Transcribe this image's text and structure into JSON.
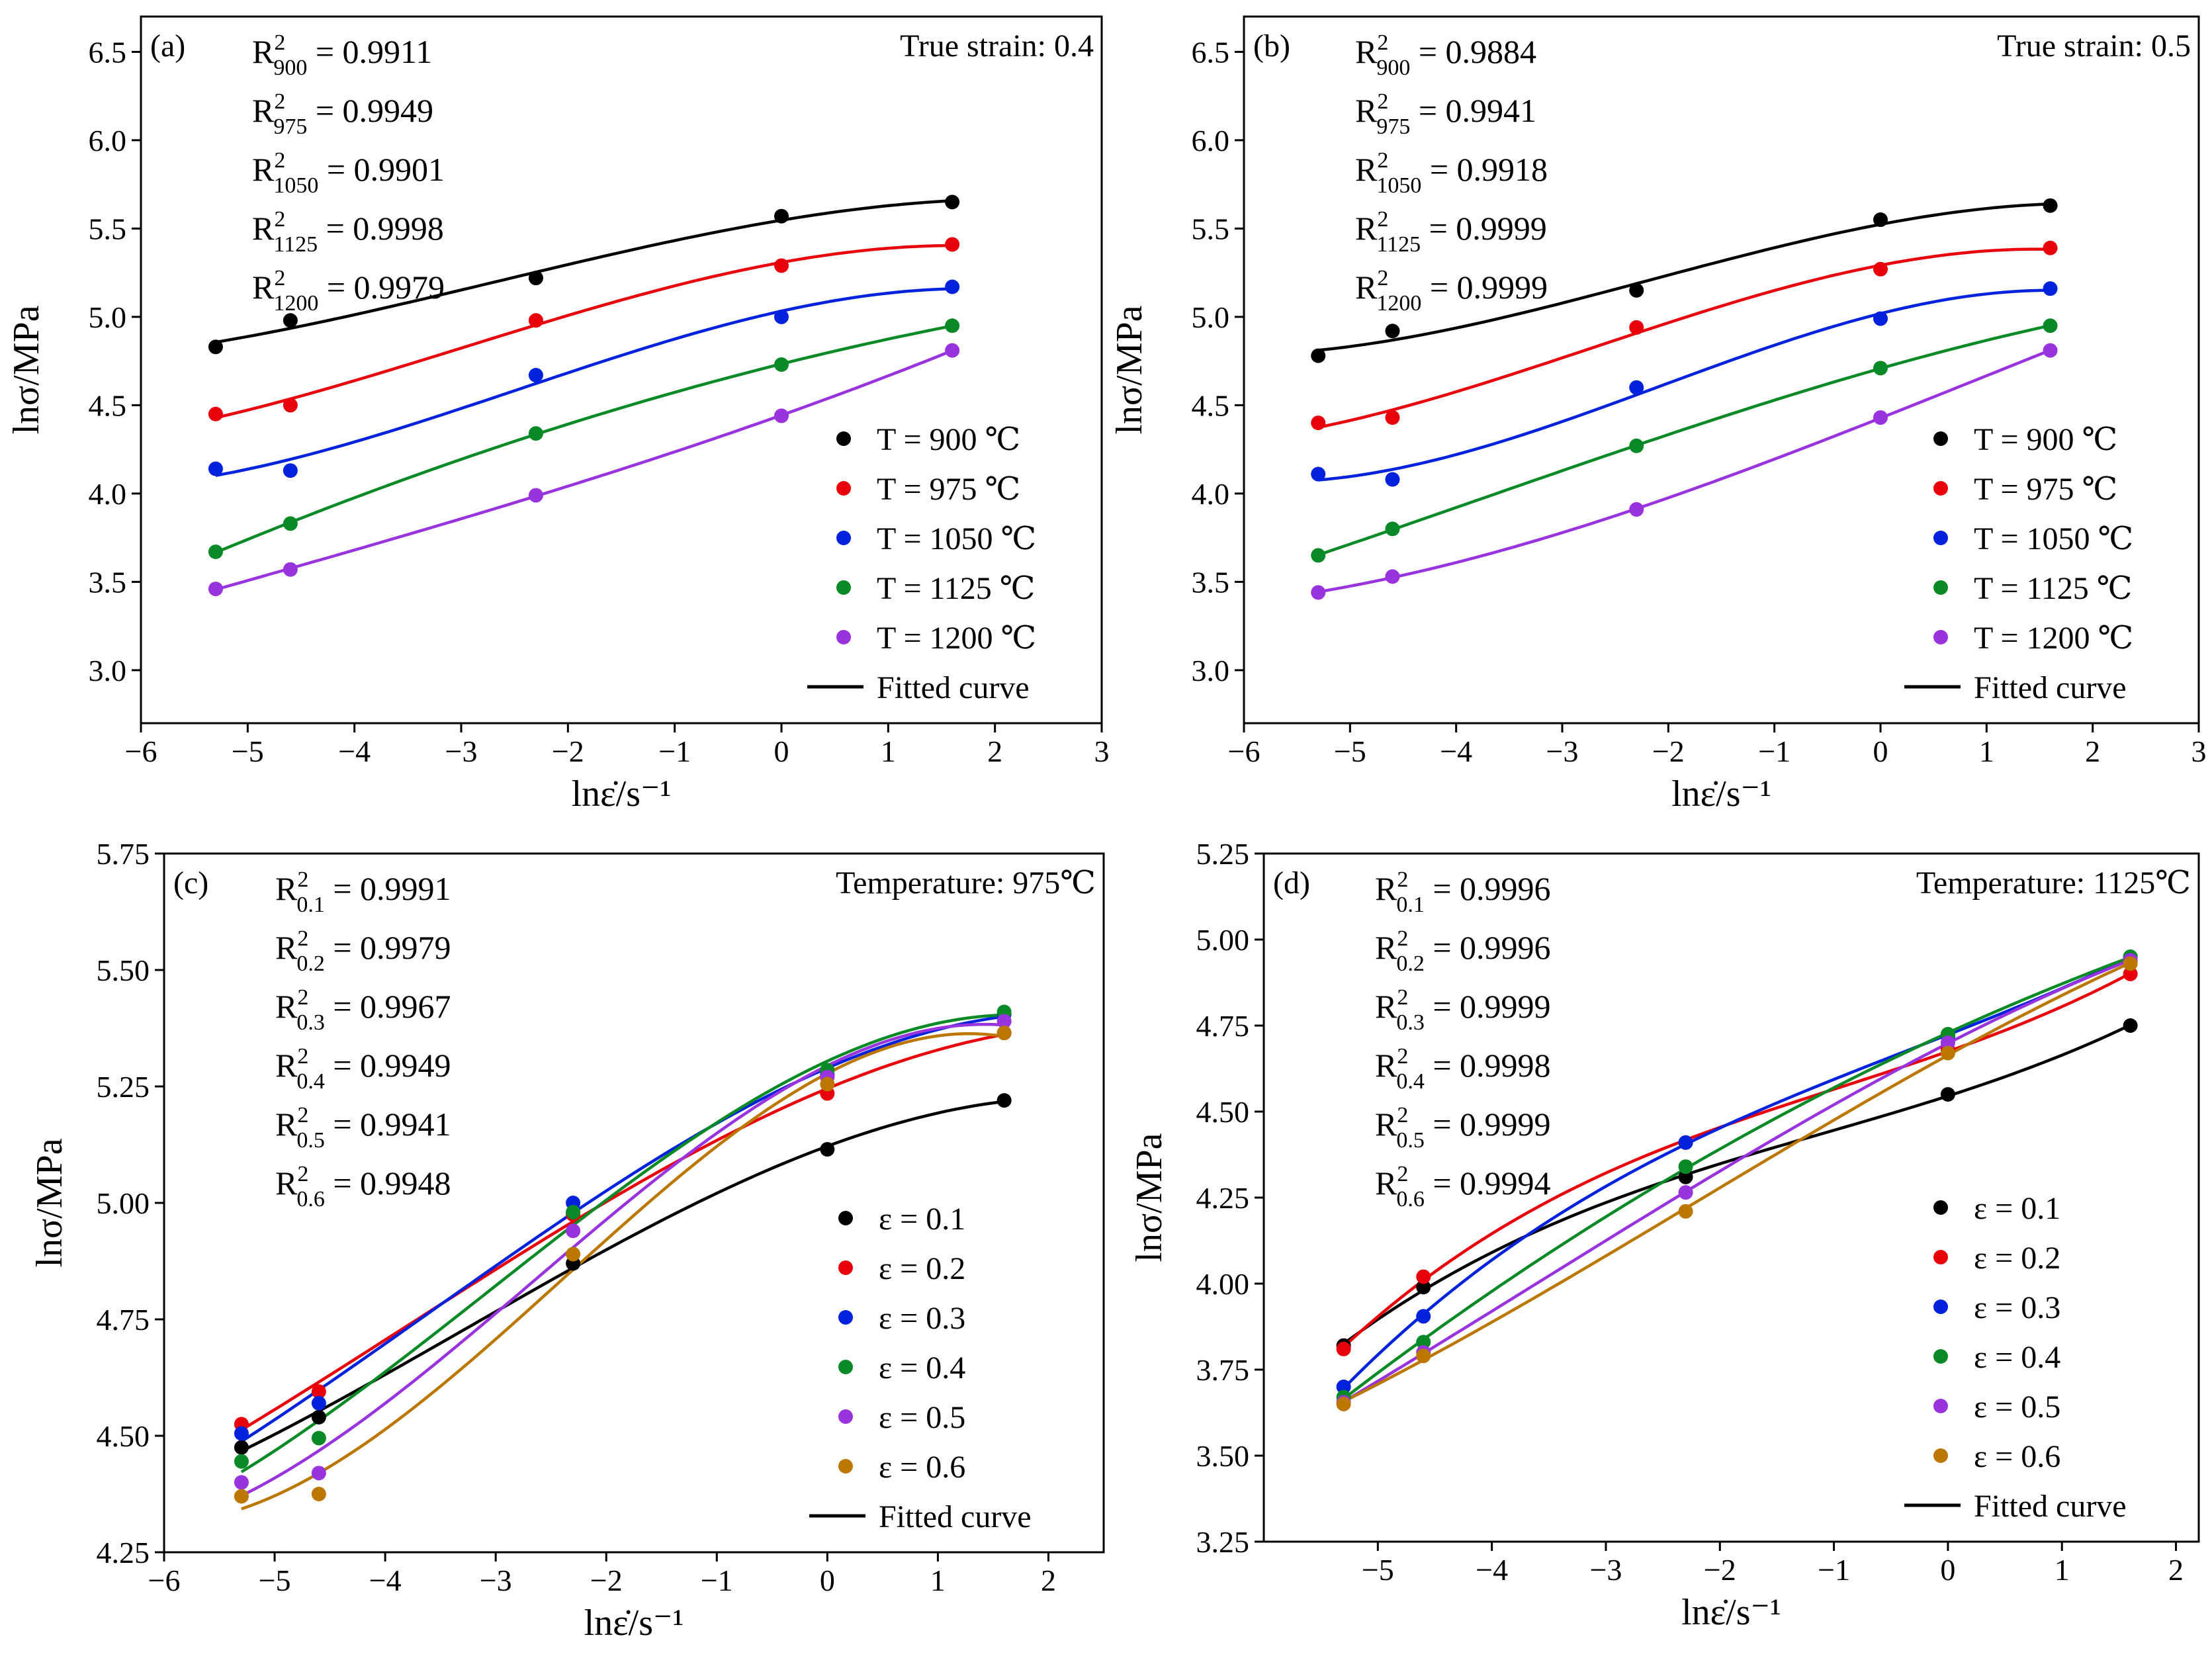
{
  "chart_data": [
    {
      "type": "scatter",
      "panel": "(a)",
      "annotation": "True strain: 0.4",
      "xlabel": "lnε̇/s⁻¹",
      "ylabel": "lnσ/MPa",
      "xlim": [
        -6,
        3
      ],
      "ylim": [
        2.7,
        6.7
      ],
      "xticks": [
        -6,
        -5,
        -4,
        -3,
        -2,
        -1,
        0,
        1,
        2,
        3
      ],
      "xtick_labels": [
        "−6",
        "−5",
        "−4",
        "−3",
        "−2",
        "−1",
        "0",
        "1",
        "2",
        "3"
      ],
      "yticks": [
        3.0,
        3.5,
        4.0,
        4.5,
        5.0,
        5.5,
        6.0,
        6.5
      ],
      "ytick_labels": [
        "3.0",
        "3.5",
        "4.0",
        "4.5",
        "5.0",
        "5.5",
        "6.0",
        "6.5"
      ],
      "x": [
        -5.3,
        -4.6,
        -2.3,
        0,
        1.6
      ],
      "r2": [
        {
          "prefix": "R",
          "sub": "900",
          "value": " = 0.9911"
        },
        {
          "prefix": "R",
          "sub": "975",
          "value": " = 0.9949"
        },
        {
          "prefix": "R",
          "sub": "1050",
          "value": " = 0.9901"
        },
        {
          "prefix": "R",
          "sub": "1125",
          "value": " = 0.9998"
        },
        {
          "prefix": "R",
          "sub": "1200",
          "value": " = 0.9979"
        }
      ],
      "series": [
        {
          "name": "T = 900 ℃",
          "color": "#000000",
          "values": [
            4.83,
            4.98,
            5.22,
            5.57,
            5.65
          ]
        },
        {
          "name": "T = 975 ℃",
          "color": "#e8000b",
          "values": [
            4.45,
            4.5,
            4.98,
            5.29,
            5.41
          ]
        },
        {
          "name": "T = 1050 ℃",
          "color": "#0022dd",
          "values": [
            4.14,
            4.13,
            4.67,
            5.0,
            5.17
          ]
        },
        {
          "name": "T = 1125 ℃",
          "color": "#0a8a26",
          "values": [
            3.67,
            3.83,
            4.34,
            4.73,
            4.95
          ]
        },
        {
          "name": "T = 1200 ℃",
          "color": "#9933dd",
          "values": [
            3.46,
            3.57,
            3.99,
            4.44,
            4.81
          ]
        }
      ],
      "fitted_label": "Fitted curve"
    },
    {
      "type": "scatter",
      "panel": "(b)",
      "annotation": "True strain: 0.5",
      "xlabel": "lnε̇/s⁻¹",
      "ylabel": "lnσ/MPa",
      "xlim": [
        -6,
        3
      ],
      "ylim": [
        2.7,
        6.7
      ],
      "xticks": [
        -6,
        -5,
        -4,
        -3,
        -2,
        -1,
        0,
        1,
        2,
        3
      ],
      "xtick_labels": [
        "−6",
        "−5",
        "−4",
        "−3",
        "−2",
        "−1",
        "0",
        "1",
        "2",
        "3"
      ],
      "yticks": [
        3.0,
        3.5,
        4.0,
        4.5,
        5.0,
        5.5,
        6.0,
        6.5
      ],
      "ytick_labels": [
        "3.0",
        "3.5",
        "4.0",
        "4.5",
        "5.0",
        "5.5",
        "6.0",
        "6.5"
      ],
      "x": [
        -5.3,
        -4.6,
        -2.3,
        0,
        1.6
      ],
      "r2": [
        {
          "prefix": "R",
          "sub": "900",
          "value": " = 0.9884"
        },
        {
          "prefix": "R",
          "sub": "975",
          "value": " = 0.9941"
        },
        {
          "prefix": "R",
          "sub": "1050",
          "value": " = 0.9918"
        },
        {
          "prefix": "R",
          "sub": "1125",
          "value": " = 0.9999"
        },
        {
          "prefix": "R",
          "sub": "1200",
          "value": " = 0.9999"
        }
      ],
      "series": [
        {
          "name": "T = 900 ℃",
          "color": "#000000",
          "values": [
            4.78,
            4.92,
            5.15,
            5.55,
            5.63
          ]
        },
        {
          "name": "T = 975 ℃",
          "color": "#e8000b",
          "values": [
            4.4,
            4.43,
            4.94,
            5.27,
            5.39
          ]
        },
        {
          "name": "T = 1050 ℃",
          "color": "#0022dd",
          "values": [
            4.11,
            4.08,
            4.6,
            4.99,
            5.16
          ]
        },
        {
          "name": "T = 1125 ℃",
          "color": "#0a8a26",
          "values": [
            3.65,
            3.8,
            4.27,
            4.71,
            4.95
          ]
        },
        {
          "name": "T = 1200 ℃",
          "color": "#9933dd",
          "values": [
            3.44,
            3.53,
            3.91,
            4.43,
            4.81
          ]
        }
      ],
      "fitted_label": "Fitted curve"
    },
    {
      "type": "scatter",
      "panel": "(c)",
      "annotation": "Temperature: 975℃",
      "xlabel": "lnε̇/s⁻¹",
      "ylabel": "lnσ/MPa",
      "xlim": [
        -6,
        2.5
      ],
      "ylim": [
        4.25,
        5.75
      ],
      "xticks": [
        -6,
        -5,
        -4,
        -3,
        -2,
        -1,
        0,
        1,
        2
      ],
      "xtick_labels": [
        "−6",
        "−5",
        "−4",
        "−3",
        "−2",
        "−1",
        "0",
        "1",
        "2"
      ],
      "yticks": [
        4.25,
        4.5,
        4.75,
        5.0,
        5.25,
        5.5,
        5.75
      ],
      "ytick_labels": [
        "4.25",
        "4.50",
        "4.75",
        "5.00",
        "5.25",
        "5.50",
        "5.75"
      ],
      "x": [
        -5.3,
        -4.6,
        -2.3,
        0,
        1.6
      ],
      "r2": [
        {
          "prefix": "R",
          "sub": "0.1",
          "value": " = 0.9991"
        },
        {
          "prefix": "R",
          "sub": "0.2",
          "value": " = 0.9979"
        },
        {
          "prefix": "R",
          "sub": "0.3",
          "value": " = 0.9967"
        },
        {
          "prefix": "R",
          "sub": "0.4",
          "value": " = 0.9949"
        },
        {
          "prefix": "R",
          "sub": "0.5",
          "value": " = 0.9941"
        },
        {
          "prefix": "R",
          "sub": "0.6",
          "value": " = 0.9948"
        }
      ],
      "series": [
        {
          "name": "ε = 0.1",
          "color": "#000000",
          "values": [
            4.475,
            4.54,
            4.87,
            5.115,
            5.22
          ]
        },
        {
          "name": "ε = 0.2",
          "color": "#e8000b",
          "values": [
            4.525,
            4.595,
            4.975,
            5.235,
            5.365
          ]
        },
        {
          "name": "ε = 0.3",
          "color": "#0022dd",
          "values": [
            4.505,
            4.57,
            5.0,
            5.275,
            5.405
          ]
        },
        {
          "name": "ε = 0.4",
          "color": "#0a8a26",
          "values": [
            4.445,
            4.495,
            4.98,
            5.285,
            5.41
          ]
        },
        {
          "name": "ε = 0.5",
          "color": "#9933dd",
          "values": [
            4.4,
            4.42,
            4.94,
            5.27,
            5.39
          ]
        },
        {
          "name": "ε = 0.6",
          "color": "#bb7700",
          "values": [
            4.37,
            4.375,
            4.89,
            5.255,
            5.365
          ]
        }
      ],
      "fitted_label": "Fitted curve"
    },
    {
      "type": "scatter",
      "panel": "(d)",
      "annotation": "Temperature: 1125℃",
      "xlabel": "lnε̇/s⁻¹",
      "ylabel": "lnσ/MPa",
      "xlim": [
        -6,
        2.2
      ],
      "ylim": [
        3.25,
        5.25
      ],
      "xticks": [
        -5,
        -4,
        -3,
        -2,
        -1,
        0,
        1,
        2
      ],
      "xtick_labels": [
        "−5",
        "−4",
        "−3",
        "−2",
        "−1",
        "0",
        "1",
        "2"
      ],
      "yticks": [
        3.25,
        3.5,
        3.75,
        4.0,
        4.25,
        4.5,
        4.75,
        5.0,
        5.25
      ],
      "ytick_labels": [
        "3.25",
        "3.50",
        "3.75",
        "4.00",
        "4.25",
        "4.50",
        "4.75",
        "5.00",
        "5.25"
      ],
      "x": [
        -5.3,
        -4.6,
        -2.3,
        0,
        1.6
      ],
      "r2": [
        {
          "prefix": "R",
          "sub": "0.1",
          "value": " = 0.9996"
        },
        {
          "prefix": "R",
          "sub": "0.2",
          "value": " = 0.9996"
        },
        {
          "prefix": "R",
          "sub": "0.3",
          "value": " = 0.9999"
        },
        {
          "prefix": "R",
          "sub": "0.4",
          "value": " = 0.9998"
        },
        {
          "prefix": "R",
          "sub": "0.5",
          "value": " = 0.9999"
        },
        {
          "prefix": "R",
          "sub": "0.6",
          "value": " = 0.9994"
        }
      ],
      "series": [
        {
          "name": "ε = 0.1",
          "color": "#000000",
          "values": [
            3.82,
            3.99,
            4.31,
            4.55,
            4.75
          ]
        },
        {
          "name": "ε = 0.2",
          "color": "#e8000b",
          "values": [
            3.81,
            4.02,
            4.41,
            4.68,
            4.9
          ]
        },
        {
          "name": "ε = 0.3",
          "color": "#0022dd",
          "values": [
            3.7,
            3.905,
            4.41,
            4.72,
            4.95
          ]
        },
        {
          "name": "ε = 0.4",
          "color": "#0a8a26",
          "values": [
            3.67,
            3.83,
            4.34,
            4.725,
            4.95
          ]
        },
        {
          "name": "ε = 0.5",
          "color": "#9933dd",
          "values": [
            3.655,
            3.8,
            4.265,
            4.7,
            4.94
          ]
        },
        {
          "name": "ε = 0.6",
          "color": "#bb7700",
          "values": [
            3.65,
            3.79,
            4.21,
            4.67,
            4.93
          ]
        }
      ],
      "fitted_label": "Fitted curve"
    }
  ]
}
